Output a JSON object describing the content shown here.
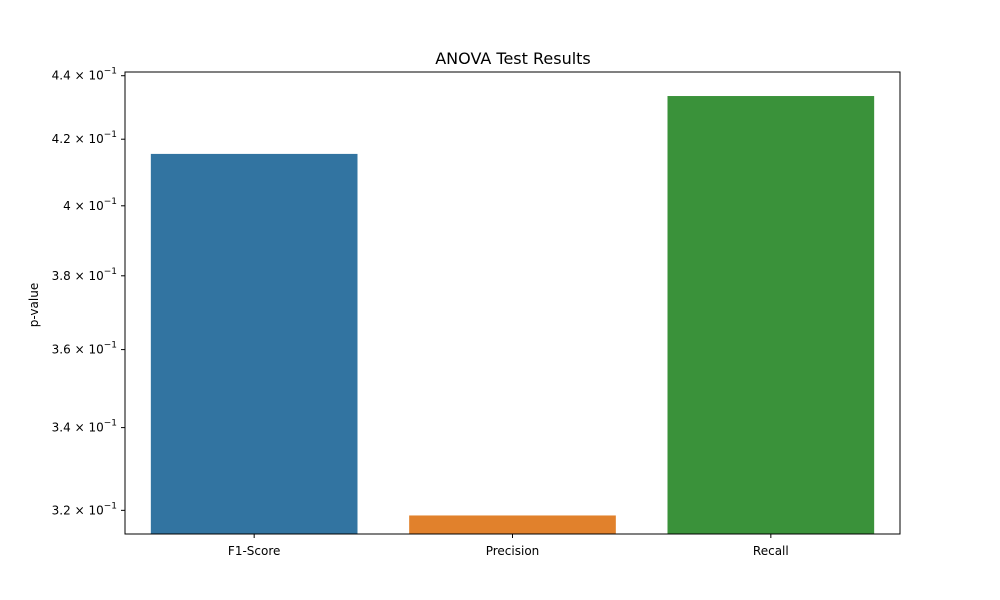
{
  "chart_data": {
    "type": "bar",
    "title": "ANOVA Test Results",
    "xlabel": "",
    "ylabel": "p-value",
    "y_scale": "log",
    "ylim": [
      0.3145,
      0.4412
    ],
    "categories": [
      "F1-Score",
      "Precision",
      "Recall"
    ],
    "values": [
      0.4155,
      0.3188,
      0.4335
    ],
    "colors": [
      "#3274a1",
      "#e1812c",
      "#3a923a"
    ],
    "yticks": [
      {
        "value": 0.32,
        "mantissa": "3.2",
        "exponent": "−1"
      },
      {
        "value": 0.34,
        "mantissa": "3.4",
        "exponent": "−1"
      },
      {
        "value": 0.36,
        "mantissa": "3.6",
        "exponent": "−1"
      },
      {
        "value": 0.38,
        "mantissa": "3.8",
        "exponent": "−1"
      },
      {
        "value": 0.4,
        "mantissa": "4",
        "exponent": "−1"
      },
      {
        "value": 0.42,
        "mantissa": "4.2",
        "exponent": "−1"
      },
      {
        "value": 0.44,
        "mantissa": "4.4",
        "exponent": "−1"
      }
    ],
    "grid": false,
    "legend": "none"
  }
}
